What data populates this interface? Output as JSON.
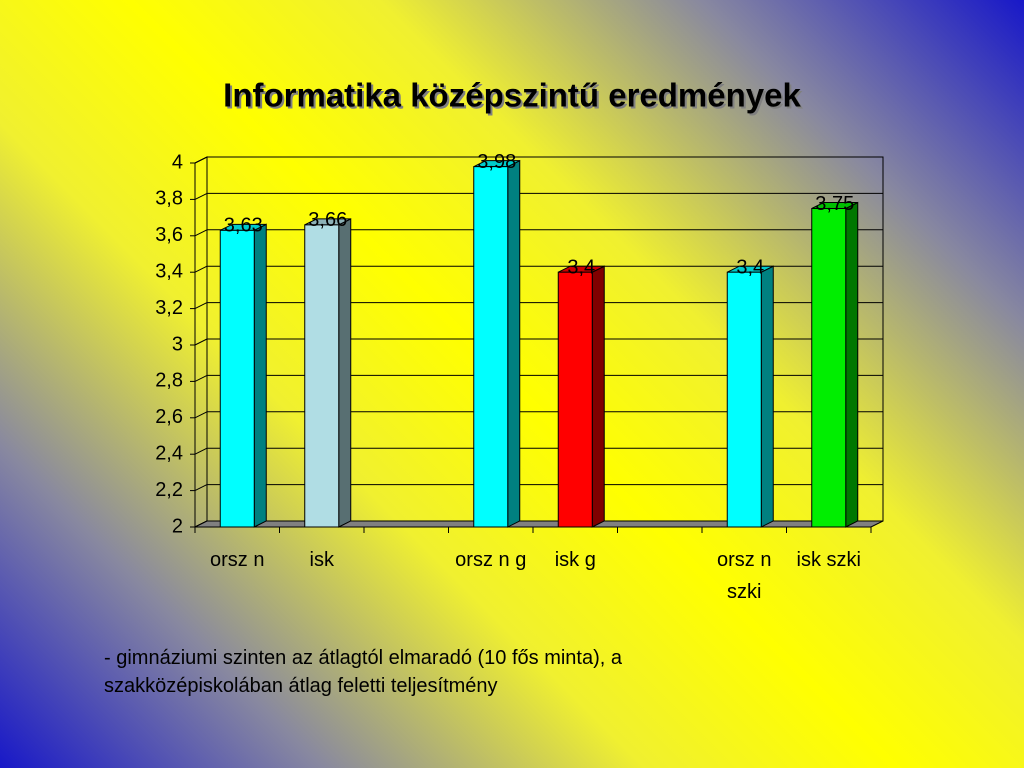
{
  "chart_data": {
    "type": "bar3d",
    "title": "Informatika középszintű eredmények",
    "categories": [
      "orsz n",
      "isk",
      null,
      "orsz n g",
      "isk g",
      null,
      "orsz n szki",
      "isk szki"
    ],
    "values": [
      3.63,
      3.66,
      null,
      3.98,
      3.4,
      null,
      3.4,
      3.75
    ],
    "value_labels": [
      "3,63",
      "3,66",
      null,
      "3,98",
      "3,4",
      null,
      "3,4",
      "3,75"
    ],
    "colors": [
      "#00ffff",
      "#b0dde4",
      null,
      "#00ffff",
      "#ff0000",
      null,
      "#00ffff",
      "#00ee00"
    ],
    "ylim": [
      2,
      4
    ],
    "yticks": [
      2,
      {
        "value": 2.2,
        "label": "2,2"
      },
      {
        "value": 2.4,
        "label": "2,4"
      },
      {
        "value": 2.6,
        "label": "2,6"
      },
      {
        "value": 2.8,
        "label": "2,8"
      },
      3,
      {
        "value": 3.2,
        "label": "3,2"
      },
      {
        "value": 3.4,
        "label": "3,4"
      },
      {
        "value": 3.6,
        "label": "3,6"
      },
      {
        "value": 3.8,
        "label": "3,8"
      },
      4
    ],
    "grid": true
  },
  "note": "- gimnáziumi szinten az átlagtól elmaradó (10 fős minta), a szakközépiskolában átlag feletti teljesítmény"
}
